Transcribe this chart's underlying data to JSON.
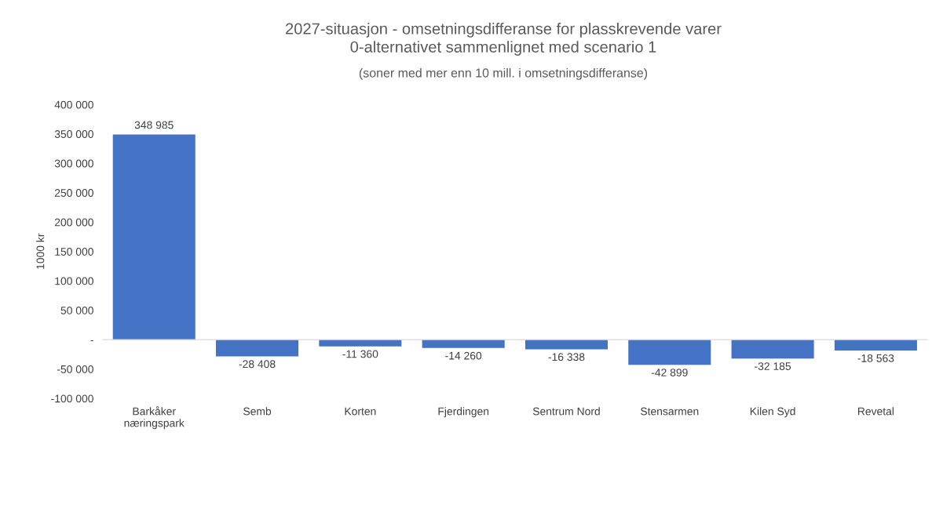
{
  "chart_data": {
    "type": "bar",
    "title": "2027-situasjon - omsetningsdifferanse for plasskrevende varer\n0-alternativet sammenlignet med scenario 1",
    "subtitle": "(soner med mer enn 10 mill. i omsetningsdifferanse)",
    "ylabel": "1000 kr",
    "categories": [
      "Barkåker\nnæringspark",
      "Semb",
      "Korten",
      "Fjerdingen",
      "Sentrum Nord",
      "Stensarmen",
      "Kilen Syd",
      "Revetal"
    ],
    "values": [
      348985,
      -28408,
      -11360,
      -14260,
      -16338,
      -42899,
      -32185,
      -18563
    ],
    "value_labels": [
      "348 985",
      "-28 408",
      "-11 360",
      "-14 260",
      "-16 338",
      "-42 899",
      "-32 185",
      "-18 563"
    ],
    "color": "#4472c4",
    "ylim": [
      -100000,
      400000
    ],
    "yticks": [
      {
        "value": -100000,
        "label": "-100 000"
      },
      {
        "value": -50000,
        "label": "-50 000"
      },
      {
        "value": 0,
        "label": "-"
      },
      {
        "value": 50000,
        "label": "50 000"
      },
      {
        "value": 100000,
        "label": "100 000"
      },
      {
        "value": 150000,
        "label": "150 000"
      },
      {
        "value": 200000,
        "label": "200 000"
      },
      {
        "value": 250000,
        "label": "250 000"
      },
      {
        "value": 300000,
        "label": "300 000"
      },
      {
        "value": 350000,
        "label": "350 000"
      },
      {
        "value": 400000,
        "label": "400 000"
      }
    ],
    "ref_lines": [
      {
        "axis": "y",
        "value": 0,
        "color": "#d9d9d9"
      }
    ],
    "grid": false,
    "legend": false
  }
}
